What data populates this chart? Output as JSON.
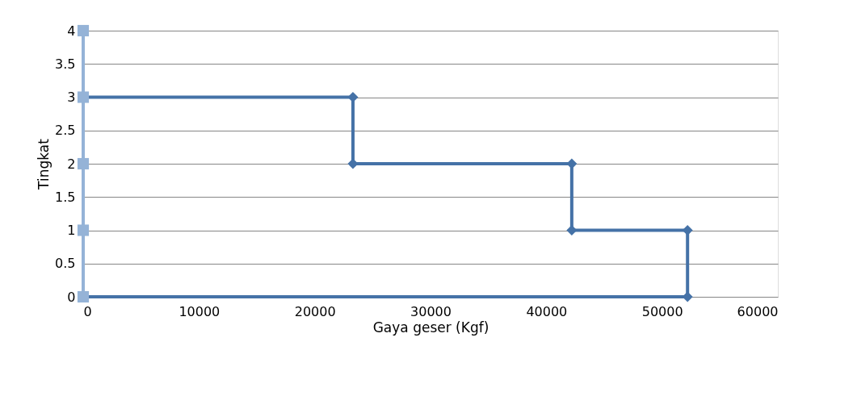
{
  "chart_data": {
    "type": "line",
    "xlabel": "Gaya geser (Kgf)",
    "ylabel": "Tingkat",
    "xlim": [
      0,
      60000
    ],
    "xticks": [
      0,
      10000,
      20000,
      30000,
      40000,
      50000,
      60000
    ],
    "ylim": [
      0,
      4
    ],
    "yticks": [
      0,
      0.5,
      1,
      1.5,
      2,
      2.5,
      3,
      3.5,
      4
    ],
    "grid": "y",
    "line_style": "solid",
    "series": [
      {
        "color": "#4572a7",
        "marker": "diamond",
        "x": [
          0,
          23300,
          23300,
          42200,
          42200,
          52200,
          52200,
          0
        ],
        "values": [
          3,
          3,
          2,
          2,
          1,
          1,
          0,
          0
        ]
      },
      {
        "color": "#95b3d7",
        "marker": "square",
        "x": [
          0,
          0,
          0,
          0,
          0
        ],
        "values": [
          0,
          1,
          2,
          3,
          4
        ]
      }
    ]
  }
}
